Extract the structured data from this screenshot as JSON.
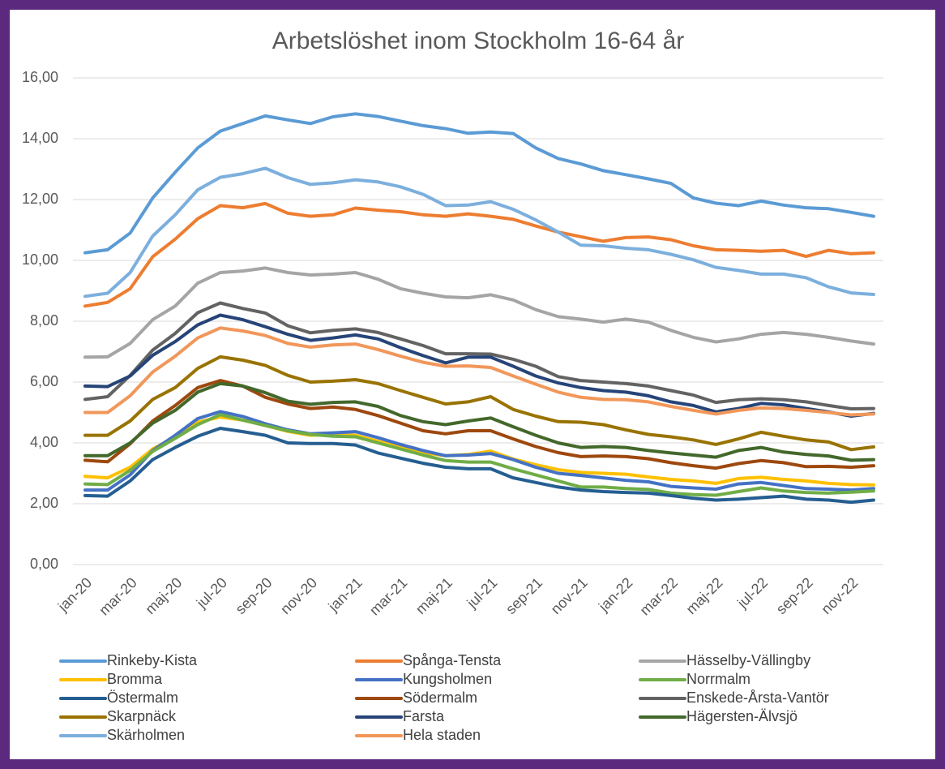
{
  "chart_data": {
    "type": "line",
    "title": "Arbetslöshet inom Stockholm 16-64 år",
    "categories": [
      "jan-20",
      null,
      "mar-20",
      null,
      "maj-20",
      null,
      "jul-20",
      null,
      "sep-20",
      null,
      "nov-20",
      null,
      "jan-21",
      null,
      "mar-21",
      null,
      "maj-21",
      null,
      "jul-21",
      null,
      "sep-21",
      null,
      "nov-21",
      null,
      "jan-22",
      null,
      "mar-22",
      null,
      "maj-22",
      null,
      "jul-22",
      null,
      "sep-22",
      null,
      "nov-22",
      null
    ],
    "ylim": [
      0,
      16
    ],
    "yticks": [
      {
        "value": 0,
        "label": "0,00"
      },
      {
        "value": 2,
        "label": "2,00"
      },
      {
        "value": 4,
        "label": "4,00"
      },
      {
        "value": 6,
        "label": "6,00"
      },
      {
        "value": 8,
        "label": "8,00"
      },
      {
        "value": 10,
        "label": "10,00"
      },
      {
        "value": 12,
        "label": "12,00"
      },
      {
        "value": 14,
        "label": "14,00"
      },
      {
        "value": 16,
        "label": "16,00"
      }
    ],
    "grid": true,
    "legend": "bottom",
    "series": [
      {
        "name": "Rinkeby-Kista",
        "color": "#5b9bd5",
        "values": [
          10.25,
          10.35,
          10.9,
          12.05,
          12.9,
          13.7,
          14.25,
          14.5,
          14.75,
          14.62,
          14.5,
          14.72,
          14.82,
          14.73,
          14.58,
          14.43,
          14.33,
          14.18,
          14.22,
          14.17,
          13.7,
          13.35,
          13.17,
          12.95,
          12.82,
          12.68,
          12.53,
          12.05,
          11.88,
          11.8,
          11.95,
          11.82,
          11.73,
          11.7,
          11.58,
          11.45
        ]
      },
      {
        "name": "Spånga-Tensta",
        "color": "#ed7d31",
        "values": [
          8.5,
          8.62,
          9.07,
          10.12,
          10.7,
          11.37,
          11.8,
          11.73,
          11.87,
          11.55,
          11.45,
          11.5,
          11.72,
          11.65,
          11.6,
          11.5,
          11.45,
          11.53,
          11.45,
          11.35,
          11.13,
          10.93,
          10.78,
          10.63,
          10.75,
          10.77,
          10.68,
          10.48,
          10.35,
          10.33,
          10.3,
          10.33,
          10.13,
          10.33,
          10.22,
          10.25
        ]
      },
      {
        "name": "Hässelby-Vällingby",
        "color": "#a5a5a5",
        "values": [
          6.82,
          6.83,
          7.27,
          8.05,
          8.5,
          9.25,
          9.6,
          9.65,
          9.75,
          9.6,
          9.52,
          9.55,
          9.6,
          9.38,
          9.07,
          8.92,
          8.8,
          8.77,
          8.87,
          8.7,
          8.38,
          8.15,
          8.07,
          7.97,
          8.07,
          7.97,
          7.7,
          7.47,
          7.32,
          7.42,
          7.57,
          7.63,
          7.57,
          7.47,
          7.35,
          7.25
        ]
      },
      {
        "name": "Bromma",
        "color": "#ffc000",
        "values": [
          2.9,
          2.85,
          3.2,
          3.8,
          4.2,
          4.68,
          4.85,
          4.75,
          4.57,
          4.38,
          4.25,
          4.28,
          4.25,
          4.05,
          3.85,
          3.68,
          3.58,
          3.62,
          3.73,
          3.47,
          3.28,
          3.12,
          3.03,
          3.0,
          2.97,
          2.88,
          2.8,
          2.75,
          2.67,
          2.83,
          2.87,
          2.8,
          2.75,
          2.67,
          2.63,
          2.62
        ]
      },
      {
        "name": "Kungsholmen",
        "color": "#4472c4",
        "values": [
          2.45,
          2.45,
          2.95,
          3.75,
          4.25,
          4.8,
          5.03,
          4.87,
          4.63,
          4.43,
          4.3,
          4.33,
          4.37,
          4.17,
          3.95,
          3.75,
          3.58,
          3.6,
          3.65,
          3.45,
          3.2,
          3.0,
          2.93,
          2.85,
          2.77,
          2.72,
          2.57,
          2.52,
          2.48,
          2.65,
          2.7,
          2.6,
          2.5,
          2.48,
          2.45,
          2.5
        ]
      },
      {
        "name": "Norrmalm",
        "color": "#70ad47",
        "values": [
          2.65,
          2.63,
          3.1,
          3.72,
          4.15,
          4.6,
          4.93,
          4.75,
          4.57,
          4.4,
          4.28,
          4.22,
          4.2,
          4.0,
          3.8,
          3.6,
          3.42,
          3.37,
          3.37,
          3.15,
          2.95,
          2.75,
          2.55,
          2.55,
          2.5,
          2.47,
          2.35,
          2.3,
          2.28,
          2.4,
          2.52,
          2.42,
          2.37,
          2.35,
          2.38,
          2.42
        ]
      },
      {
        "name": "Östermalm",
        "color": "#255e91",
        "values": [
          2.27,
          2.25,
          2.75,
          3.45,
          3.85,
          4.22,
          4.48,
          4.37,
          4.25,
          4.0,
          3.98,
          3.98,
          3.93,
          3.67,
          3.5,
          3.33,
          3.2,
          3.15,
          3.15,
          2.85,
          2.7,
          2.55,
          2.45,
          2.4,
          2.37,
          2.35,
          2.27,
          2.18,
          2.12,
          2.15,
          2.2,
          2.25,
          2.15,
          2.12,
          2.05,
          2.12
        ]
      },
      {
        "name": "Södermalm",
        "color": "#9e480e",
        "values": [
          3.43,
          3.38,
          3.97,
          4.72,
          5.23,
          5.82,
          6.05,
          5.87,
          5.5,
          5.28,
          5.13,
          5.18,
          5.1,
          4.9,
          4.65,
          4.4,
          4.3,
          4.4,
          4.4,
          4.13,
          3.88,
          3.68,
          3.55,
          3.57,
          3.55,
          3.48,
          3.35,
          3.25,
          3.17,
          3.32,
          3.42,
          3.35,
          3.22,
          3.23,
          3.2,
          3.25
        ]
      },
      {
        "name": "Enskede-Årsta-Vantör",
        "color": "#636363",
        "values": [
          5.43,
          5.52,
          6.22,
          7.05,
          7.6,
          8.28,
          8.6,
          8.42,
          8.27,
          7.85,
          7.62,
          7.7,
          7.75,
          7.63,
          7.42,
          7.2,
          6.93,
          6.93,
          6.92,
          6.75,
          6.52,
          6.18,
          6.05,
          6.0,
          5.95,
          5.87,
          5.72,
          5.57,
          5.33,
          5.42,
          5.45,
          5.42,
          5.35,
          5.23,
          5.12,
          5.13
        ]
      },
      {
        "name": "Skarpnäck",
        "color": "#997300",
        "values": [
          4.25,
          4.25,
          4.72,
          5.43,
          5.82,
          6.45,
          6.83,
          6.72,
          6.55,
          6.22,
          6.0,
          6.03,
          6.08,
          5.95,
          5.72,
          5.5,
          5.28,
          5.35,
          5.52,
          5.1,
          4.88,
          4.7,
          4.68,
          4.6,
          4.43,
          4.28,
          4.2,
          4.1,
          3.95,
          4.13,
          4.35,
          4.22,
          4.1,
          4.03,
          3.78,
          3.87
        ]
      },
      {
        "name": "Farsta",
        "color": "#264478",
        "values": [
          5.87,
          5.85,
          6.2,
          6.88,
          7.33,
          7.88,
          8.2,
          8.05,
          7.82,
          7.57,
          7.37,
          7.45,
          7.55,
          7.42,
          7.13,
          6.87,
          6.63,
          6.82,
          6.82,
          6.52,
          6.2,
          5.97,
          5.82,
          5.72,
          5.67,
          5.55,
          5.35,
          5.23,
          5.02,
          5.13,
          5.3,
          5.25,
          5.13,
          5.02,
          4.88,
          4.97
        ]
      },
      {
        "name": "Hägersten-Älvsjö",
        "color": "#43682b",
        "values": [
          3.58,
          3.58,
          4.0,
          4.65,
          5.07,
          5.67,
          5.95,
          5.87,
          5.65,
          5.37,
          5.27,
          5.33,
          5.35,
          5.2,
          4.9,
          4.7,
          4.6,
          4.72,
          4.82,
          4.53,
          4.25,
          4.0,
          3.85,
          3.88,
          3.85,
          3.75,
          3.67,
          3.6,
          3.53,
          3.75,
          3.85,
          3.7,
          3.62,
          3.57,
          3.43,
          3.45
        ]
      },
      {
        "name": "Skärholmen",
        "color": "#7cafdd",
        "values": [
          8.82,
          8.92,
          9.6,
          10.8,
          11.5,
          12.32,
          12.73,
          12.85,
          13.03,
          12.72,
          12.5,
          12.55,
          12.65,
          12.58,
          12.42,
          12.17,
          11.8,
          11.82,
          11.93,
          11.68,
          11.33,
          10.93,
          10.5,
          10.48,
          10.4,
          10.35,
          10.2,
          10.02,
          9.77,
          9.67,
          9.55,
          9.55,
          9.43,
          9.13,
          8.93,
          8.88
        ]
      },
      {
        "name": "Hela staden",
        "color": "#f1975a",
        "values": [
          5.0,
          5.0,
          5.55,
          6.33,
          6.85,
          7.45,
          7.78,
          7.68,
          7.53,
          7.27,
          7.15,
          7.22,
          7.25,
          7.07,
          6.85,
          6.65,
          6.52,
          6.53,
          6.48,
          6.2,
          5.93,
          5.67,
          5.5,
          5.43,
          5.42,
          5.35,
          5.2,
          5.07,
          4.95,
          5.07,
          5.15,
          5.13,
          5.07,
          5.0,
          4.92,
          4.95
        ]
      }
    ]
  }
}
